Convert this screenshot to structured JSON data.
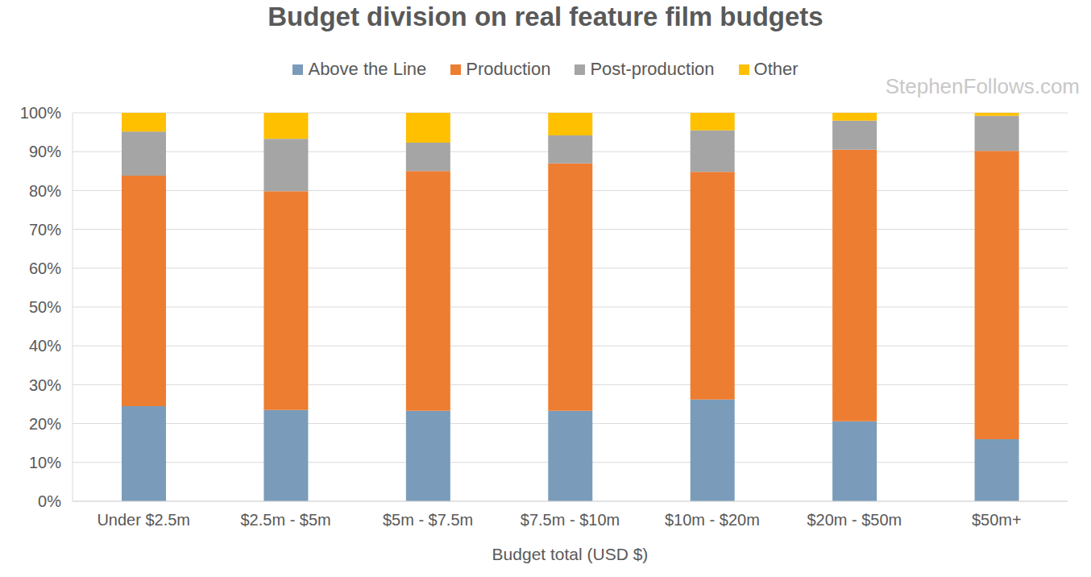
{
  "chart_data": {
    "type": "bar",
    "title": "Budget division on real feature film budgets",
    "x_label": "Budget total (USD $)",
    "annotation": "StephenFollows.com",
    "categories": [
      "Under $2.5m",
      "$2.5m - $5m",
      "$5m - $7.5m",
      "$7.5m - $10m",
      "$10m - $20m",
      "$20m - $50m",
      "$50m+"
    ],
    "series": [
      {
        "name": "Above the Line",
        "color": "#7a9cba",
        "values": [
          24.5,
          23.5,
          23.3,
          23.3,
          26.2,
          20.6,
          16.0
        ]
      },
      {
        "name": "Production",
        "color": "#ed7d31",
        "values": [
          59.3,
          56.3,
          61.7,
          63.7,
          58.6,
          69.9,
          74.2
        ]
      },
      {
        "name": "Post-production",
        "color": "#a5a5a5",
        "values": [
          11.4,
          13.5,
          7.3,
          7.2,
          10.7,
          7.5,
          9.0
        ]
      },
      {
        "name": "Other",
        "color": "#ffc000",
        "values": [
          4.8,
          6.7,
          7.7,
          5.8,
          4.5,
          2.0,
          0.8
        ]
      }
    ],
    "ylim": [
      0,
      100
    ],
    "yticks": [
      {
        "value": 0,
        "label": "0%"
      },
      {
        "value": 10,
        "label": "10%"
      },
      {
        "value": 20,
        "label": "20%"
      },
      {
        "value": 30,
        "label": "30%"
      },
      {
        "value": 40,
        "label": "40%"
      },
      {
        "value": 50,
        "label": "50%"
      },
      {
        "value": 60,
        "label": "60%"
      },
      {
        "value": 70,
        "label": "70%"
      },
      {
        "value": 80,
        "label": "80%"
      },
      {
        "value": 90,
        "label": "90%"
      },
      {
        "value": 100,
        "label": "100%"
      }
    ],
    "stacked": true,
    "grid": true,
    "legend": "top"
  }
}
